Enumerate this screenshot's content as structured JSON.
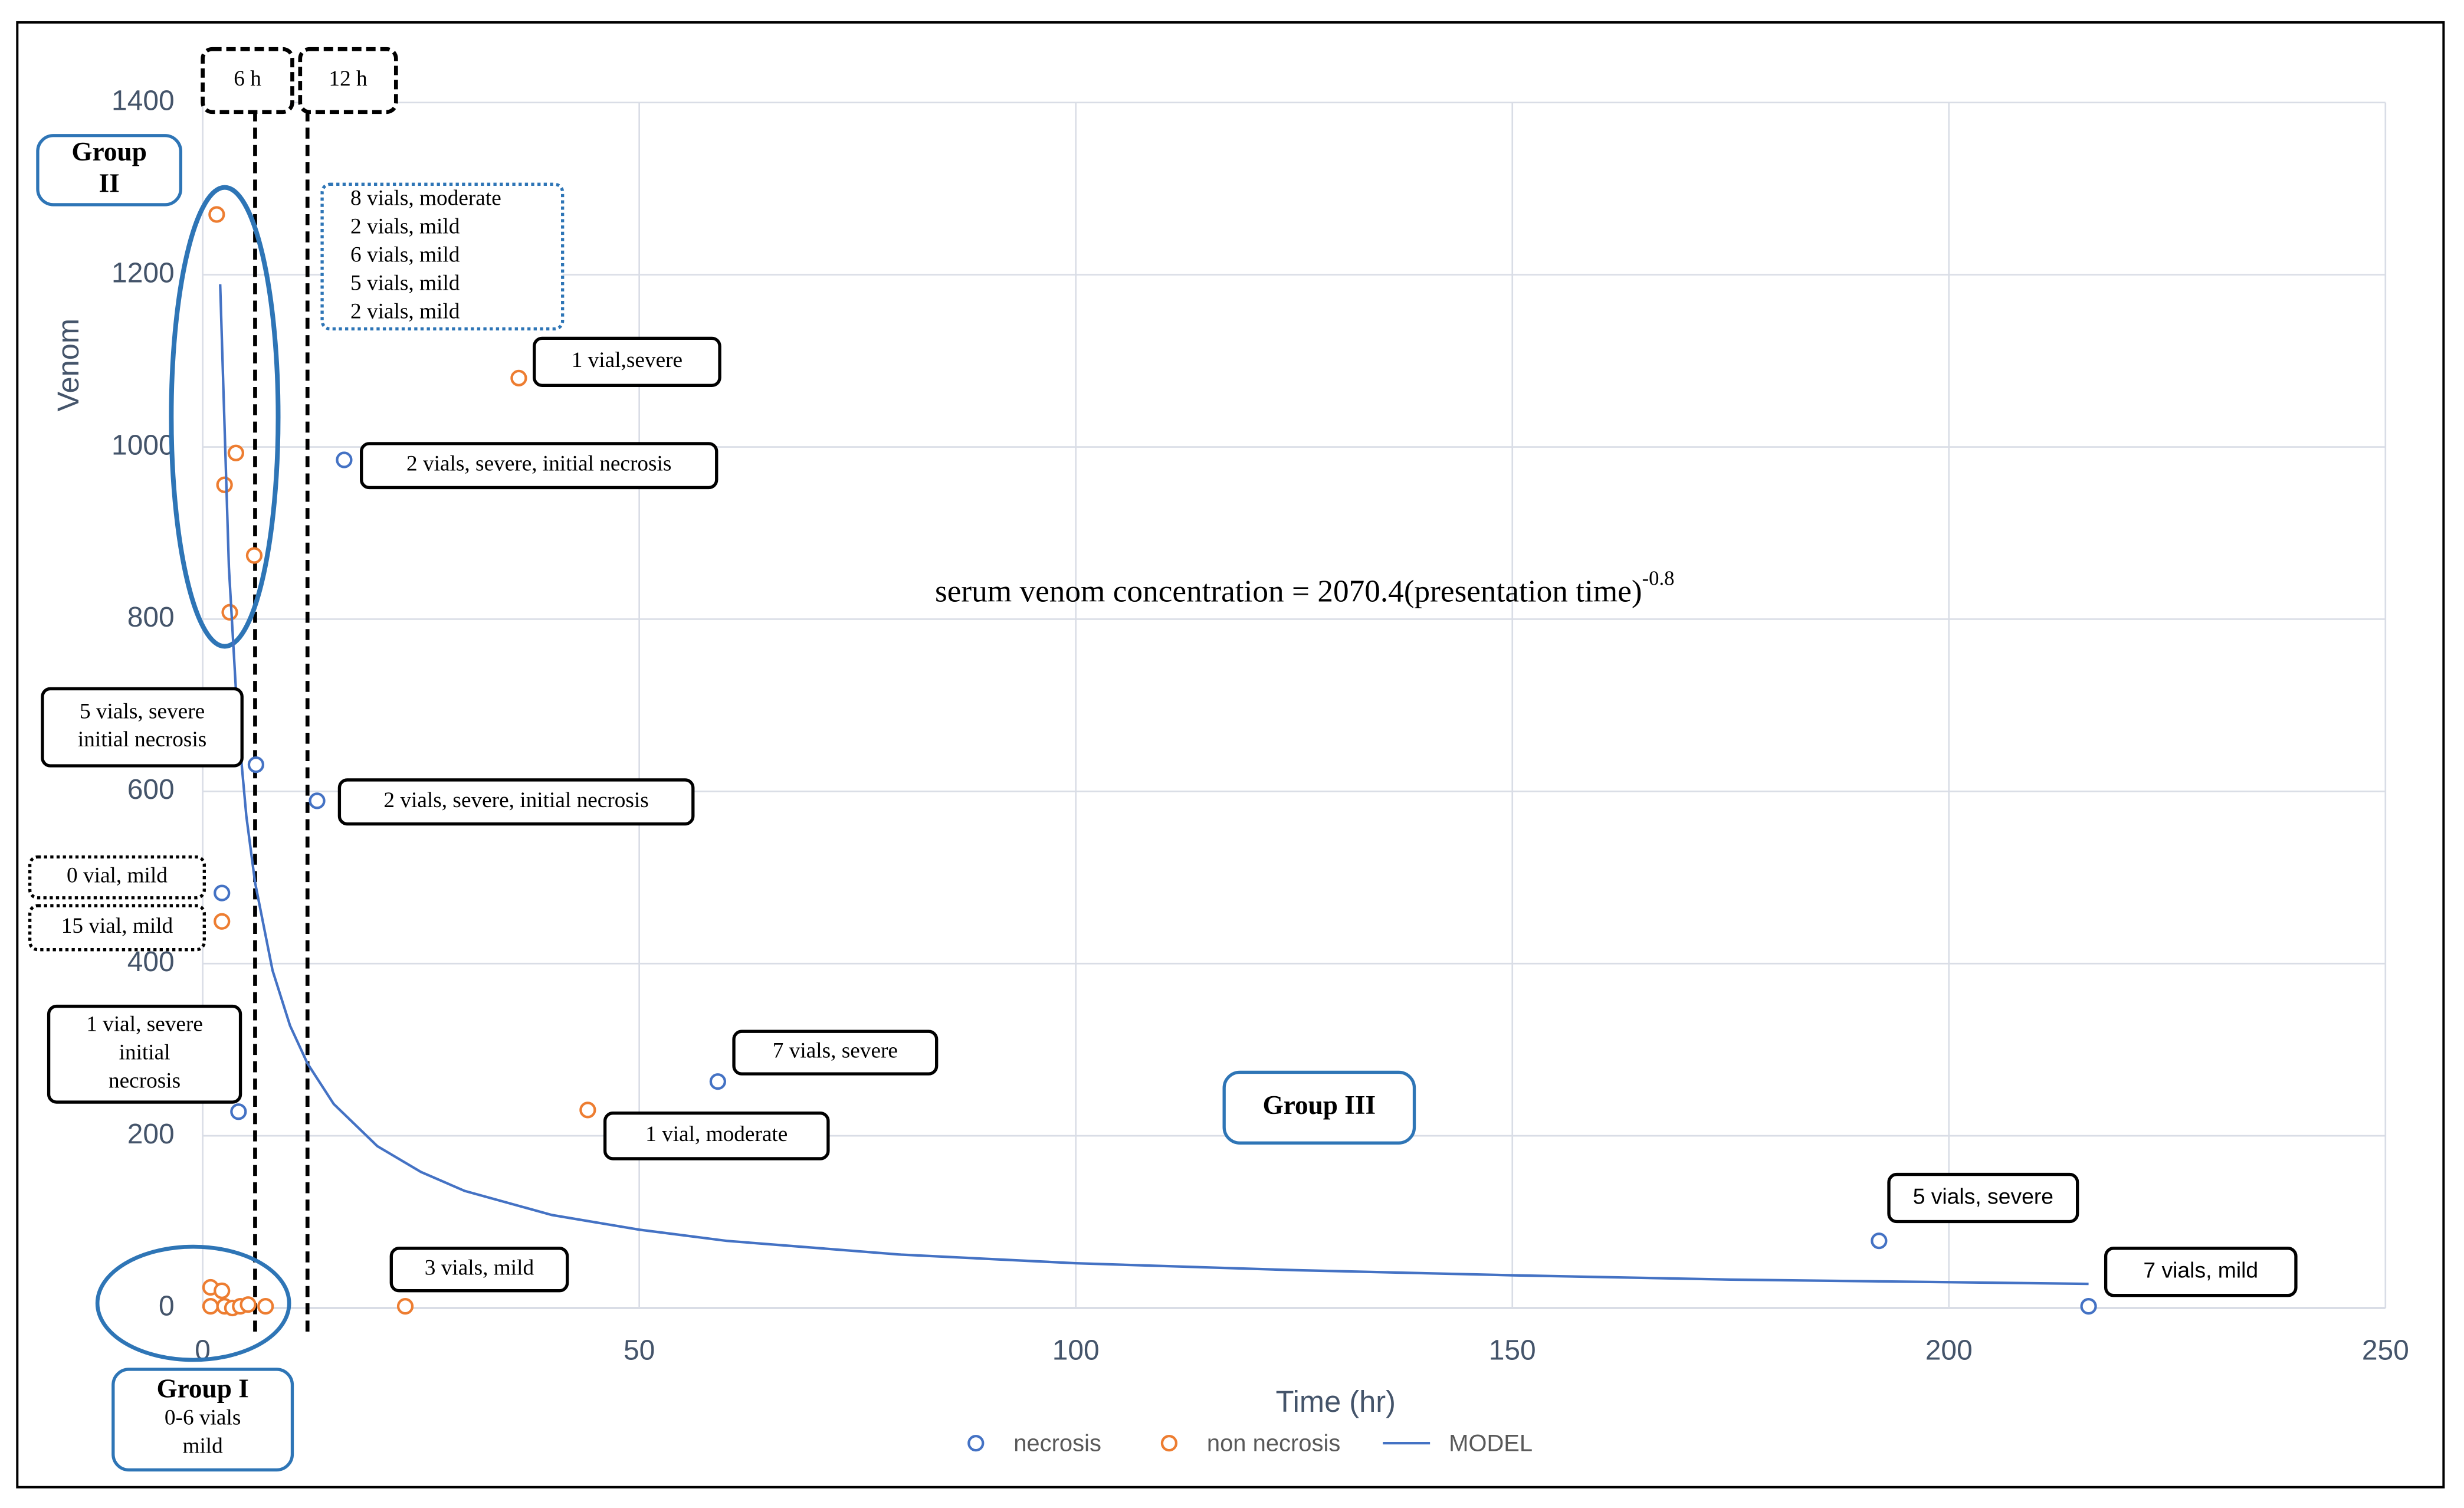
{
  "chart_data": {
    "type": "scatter",
    "x_label": "Time  (hr)",
    "y_label": "Venom",
    "xlim": [
      0,
      250
    ],
    "ylim": [
      0,
      1400
    ],
    "xticks": [
      0,
      50,
      100,
      150,
      200,
      250
    ],
    "yticks": [
      0,
      200,
      400,
      600,
      800,
      1000,
      1200,
      1400
    ],
    "grid": true,
    "legend": "bottom",
    "series": [
      {
        "name": "necrosis",
        "color": "#4472c4",
        "kind": "scatter",
        "x": [
          16.2,
          6.1,
          13.1,
          2.2,
          4.1,
          59.0,
          192.0,
          216.0
        ],
        "values": [
          985,
          631,
          589,
          482,
          228,
          263,
          78,
          2
        ]
      },
      {
        "name": "non necrosis",
        "color": "#ed7d31",
        "kind": "scatter",
        "x": [
          1.6,
          36.2,
          3.8,
          2.5,
          5.9,
          3.1,
          2.2,
          44.1,
          23.2,
          0.9,
          2.2,
          0.9,
          2.5,
          3.4,
          4.3,
          5.2,
          7.2
        ],
        "values": [
          1270,
          1080,
          993,
          956,
          874,
          808,
          449,
          230,
          2,
          24,
          20,
          2,
          2,
          0,
          2,
          4,
          2
        ]
      },
      {
        "name": "MODEL",
        "color": "#4472c4",
        "kind": "line",
        "x": [
          2,
          3,
          4,
          5,
          6,
          8,
          10,
          12,
          15,
          20,
          25,
          30,
          40,
          50,
          60,
          80,
          100,
          125,
          150,
          175,
          200,
          216
        ],
        "values": [
          1189,
          860,
          683,
          571,
          494,
          392,
          328,
          284,
          237,
          188,
          158,
          136,
          108,
          91,
          78,
          62,
          52,
          44,
          38,
          33,
          30,
          28
        ]
      }
    ],
    "reference_lines": [
      {
        "x": 6,
        "label": "6 h"
      },
      {
        "x": 12,
        "label": "12 h"
      }
    ],
    "equation": {
      "text": "serum venom concentration = 2070.4(presentation time)",
      "superscript": "-0.8"
    },
    "annotations": [
      {
        "lines": [
          "8 vials, moderate",
          "2 vials, mild",
          "6 vials, mild",
          "5 vials, mild",
          "2 vials, mild"
        ]
      },
      {
        "lines": [
          "1 vial,severe"
        ]
      },
      {
        "lines": [
          "2 vials, severe, initial necrosis"
        ]
      },
      {
        "lines": [
          "5 vials, severe",
          "initial necrosis"
        ]
      },
      {
        "lines": [
          "2 vials, severe, initial necrosis"
        ]
      },
      {
        "lines": [
          "0 vial, mild"
        ]
      },
      {
        "lines": [
          "15 vial, mild"
        ]
      },
      {
        "lines": [
          "1 vial, severe",
          "initial",
          "necrosis"
        ]
      },
      {
        "lines": [
          "7 vials, severe"
        ]
      },
      {
        "lines": [
          "1 vial, moderate"
        ]
      },
      {
        "lines": [
          "3 vials, mild"
        ]
      },
      {
        "lines": [
          "5 vials, severe"
        ]
      },
      {
        "lines": [
          "7 vials, mild"
        ]
      }
    ],
    "groups": [
      {
        "lines": [
          "Group",
          "II"
        ]
      },
      {
        "lines": [
          "Group I",
          "0-6 vials",
          "mild"
        ]
      },
      {
        "lines": [
          "Group III"
        ]
      }
    ]
  }
}
